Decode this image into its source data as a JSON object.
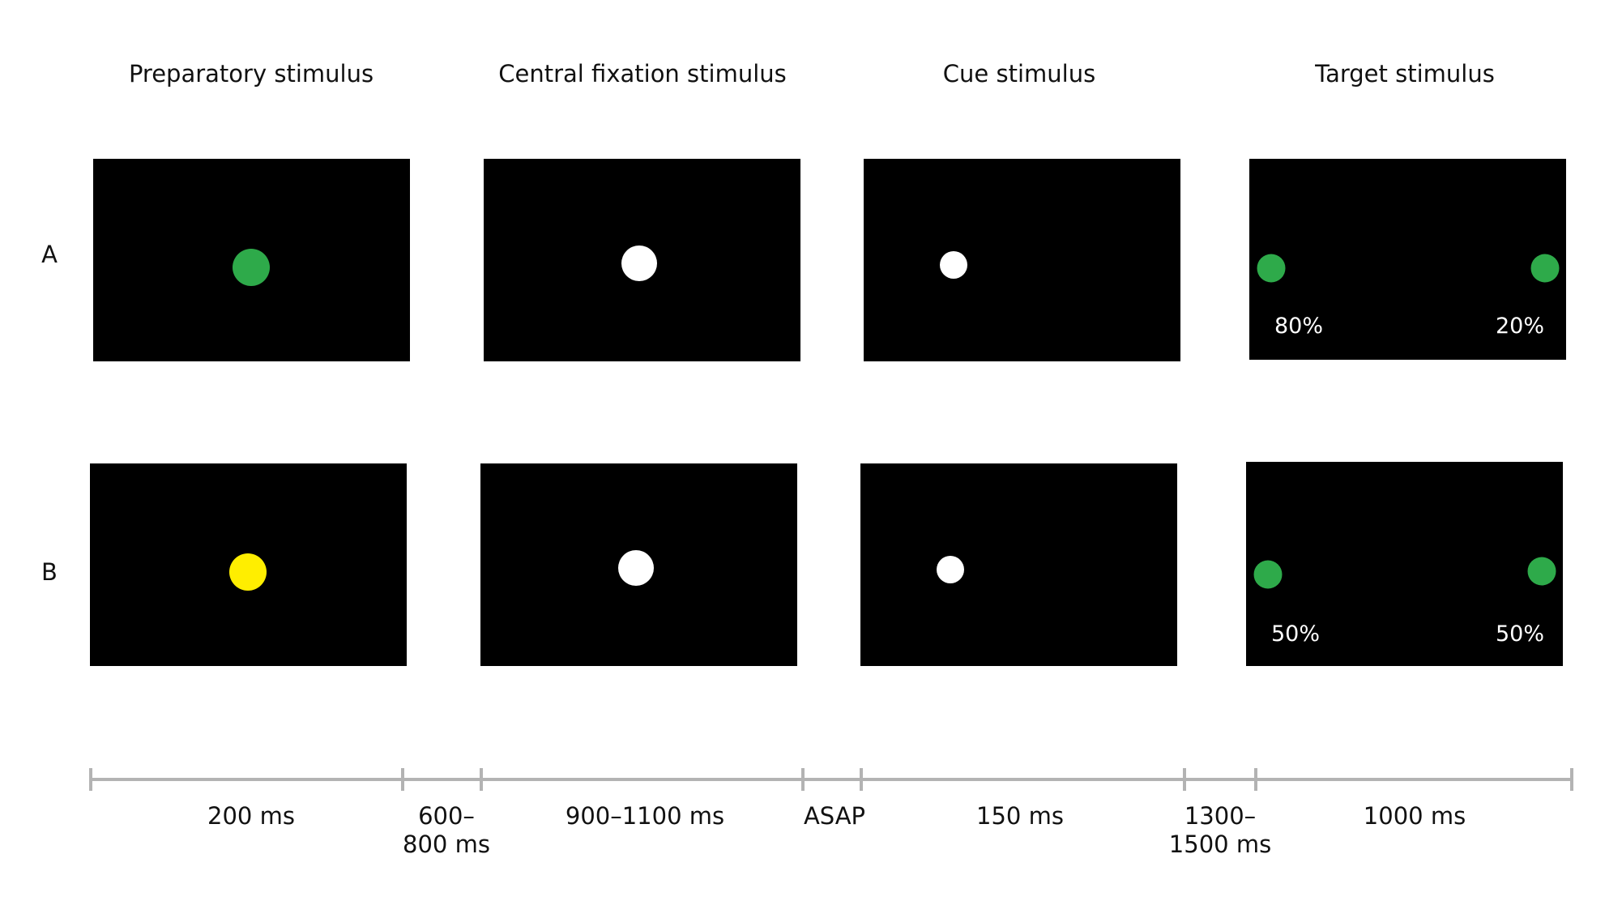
{
  "columns": [
    {
      "title": "Preparatory stimulus"
    },
    {
      "title": "Central fixation stimulus"
    },
    {
      "title": "Cue stimulus"
    },
    {
      "title": "Target stimulus"
    }
  ],
  "rows": [
    {
      "label": "A",
      "preparatory_color": "#2eaa4a",
      "target_left_pct": "80%",
      "target_right_pct": "20%"
    },
    {
      "label": "B",
      "preparatory_color": "#ffee00",
      "target_left_pct": "50%",
      "target_right_pct": "50%"
    }
  ],
  "colors": {
    "screen": "#000000",
    "fixation": "#ffffff",
    "target": "#2eaa4a",
    "timeline": "#b3b3b3"
  },
  "timeline": {
    "durations": [
      {
        "line1": "200 ms",
        "line2": ""
      },
      {
        "line1": "600–",
        "line2": "800 ms"
      },
      {
        "line1": "900–1100 ms",
        "line2": ""
      },
      {
        "line1": "ASAP",
        "line2": ""
      },
      {
        "line1": "150 ms",
        "line2": ""
      },
      {
        "line1": "1300–",
        "line2": "1500 ms"
      },
      {
        "line1": "1000 ms",
        "line2": ""
      }
    ]
  }
}
